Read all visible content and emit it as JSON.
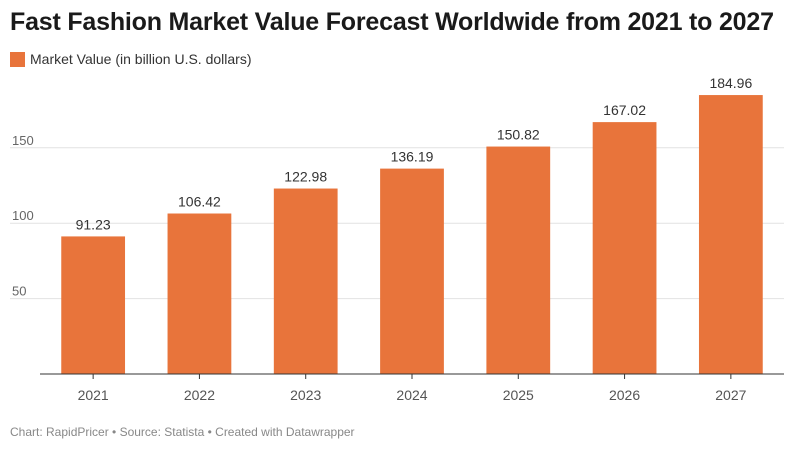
{
  "chart_data": {
    "type": "bar",
    "title": "Fast Fashion Market Value Forecast Worldwide from 2021 to 2027",
    "categories": [
      "2021",
      "2022",
      "2023",
      "2024",
      "2025",
      "2026",
      "2027"
    ],
    "series": [
      {
        "name": "Market Value (in billion U.S. dollars)",
        "values": [
          91.23,
          106.42,
          122.98,
          136.19,
          150.82,
          167.02,
          184.96
        ],
        "labels": [
          "91.23",
          "106.42",
          "122.98",
          "136.19",
          "150.82",
          "167.02",
          "184.96"
        ],
        "color": "#e8743b"
      }
    ],
    "yticks": [
      50,
      100,
      150
    ],
    "ylim": [
      0,
      185
    ],
    "grid": true,
    "legend": "top-left"
  },
  "footer": "Chart: RapidPricer • Source: Statista • Created with Datawrapper"
}
